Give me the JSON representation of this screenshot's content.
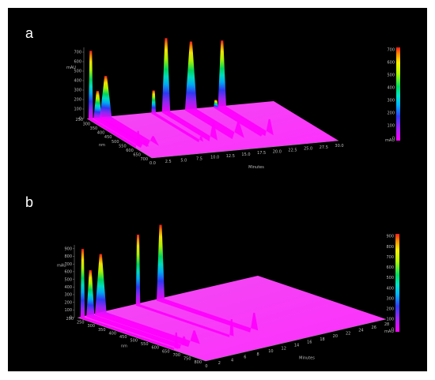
{
  "panels": [
    {
      "letter": "a",
      "chart_data": {
        "type": "area",
        "surface": "3d-spectral",
        "xlabel": "Minutes",
        "ylabel": "nm",
        "zlabel": "mAU",
        "x_ticks": [
          "0.0",
          "2.5",
          "5.0",
          "7.5",
          "10.0",
          "12.5",
          "15.0",
          "17.5",
          "20.0",
          "22.5",
          "25.0",
          "27.5",
          "30.0"
        ],
        "nm_ticks": [
          "250",
          "300",
          "350",
          "400",
          "450",
          "500",
          "550",
          "600",
          "650",
          "700"
        ],
        "z_ticks": [
          "0",
          "100",
          "200",
          "300",
          "400",
          "500",
          "600",
          "700"
        ],
        "colorbar_ticks": [
          "0",
          "100",
          "200",
          "300",
          "400",
          "500",
          "600",
          "700"
        ],
        "colorbar_unit": "mAU",
        "xlim": [
          0,
          30
        ],
        "zlim": [
          0,
          750
        ],
        "peaks": [
          {
            "time": 0.4,
            "height": 720
          },
          {
            "time": 1.5,
            "height": 290
          },
          {
            "time": 2.8,
            "height": 440
          },
          {
            "time": 10.5,
            "height": 240
          },
          {
            "time": 12.5,
            "height": 780
          },
          {
            "time": 16.5,
            "height": 720
          },
          {
            "time": 20.5,
            "height": 80
          },
          {
            "time": 21.5,
            "height": 700
          }
        ]
      }
    },
    {
      "letter": "b",
      "chart_data": {
        "type": "area",
        "surface": "3d-spectral",
        "xlabel": "Minutes",
        "ylabel": "nm",
        "zlabel": "mAU",
        "x_ticks": [
          "0",
          "2",
          "4",
          "6",
          "8",
          "10",
          "12",
          "14",
          "16",
          "18",
          "20",
          "22",
          "24",
          "26",
          "28"
        ],
        "nm_ticks": [
          "200",
          "250",
          "300",
          "350",
          "400",
          "450",
          "500",
          "550",
          "600",
          "650",
          "700",
          "750",
          "800"
        ],
        "z_ticks": [
          "0",
          "100",
          "200",
          "300",
          "400",
          "500",
          "600",
          "700",
          "800",
          "900"
        ],
        "colorbar_ticks": [
          "0",
          "100",
          "200",
          "300",
          "400",
          "500",
          "600",
          "700",
          "800",
          "900"
        ],
        "colorbar_unit": "mAU",
        "xlim": [
          0,
          28
        ],
        "zlim": [
          0,
          950
        ],
        "peaks": [
          {
            "time": 0.4,
            "height": 900
          },
          {
            "time": 1.6,
            "height": 600
          },
          {
            "time": 3.2,
            "height": 780
          },
          {
            "time": 9.0,
            "height": 920
          },
          {
            "time": 12.5,
            "height": 980
          }
        ]
      }
    }
  ]
}
